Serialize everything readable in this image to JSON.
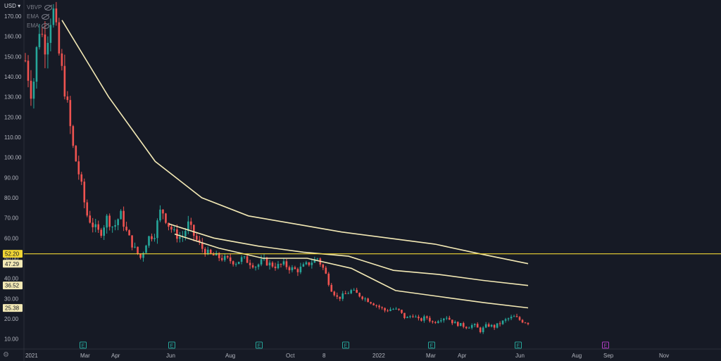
{
  "header": {
    "currency_label": "USD ▾"
  },
  "legend": [
    {
      "label": "VBVP",
      "icon": "eye-off-icon"
    },
    {
      "label": "EMA",
      "icon": "eye-off-icon"
    },
    {
      "label": "EMA",
      "icon": "eye-off-icon"
    }
  ],
  "colors": {
    "background": "#161a25",
    "up": "#26a69a",
    "down": "#ef5350",
    "ema": "#f3e9b5",
    "level_line": "#f0d534",
    "earnings": "#26a69a",
    "earnings_future": "#b03ec4"
  },
  "chart_data": {
    "type": "candlestick",
    "y_axis": {
      "ticks": [
        "170.00",
        "160.00",
        "150.00",
        "140.00",
        "130.00",
        "120.00",
        "110.00",
        "100.00",
        "90.00",
        "80.00",
        "70.00",
        "60.00",
        "50.00",
        "40.00",
        "30.00",
        "20.00",
        "10.00"
      ],
      "range": [
        5,
        178
      ]
    },
    "x_axis": {
      "ticks": [
        "2021",
        "Mar",
        "Apr",
        "Jun",
        "Aug",
        "Oct",
        "8",
        "2022",
        "Mar",
        "Apr",
        "Jun",
        "Aug",
        "Sep",
        "Nov"
      ]
    },
    "price_labels": [
      {
        "value": "52.20",
        "style": "level"
      },
      {
        "value": "47.29",
        "style": "ema"
      },
      {
        "value": "36.52",
        "style": "ema"
      },
      {
        "value": "25.38",
        "style": "ema"
      }
    ],
    "horizontal_level": 52.2,
    "ema_series": [
      {
        "values": [
          168,
          130,
          98,
          80,
          71,
          67,
          63,
          60,
          57,
          52,
          47.3
        ]
      },
      {
        "values": [
          67,
          60,
          56,
          53,
          51,
          44,
          42,
          39,
          36.5
        ]
      },
      {
        "values": [
          62,
          55,
          50,
          50,
          45,
          34,
          31,
          28,
          25.4
        ]
      }
    ],
    "price_path": [
      148,
      130,
      165,
      155,
      175,
      150,
      130,
      105,
      90,
      72,
      66,
      62,
      70,
      65,
      72,
      62,
      55,
      50,
      60,
      62,
      75,
      67,
      62,
      60,
      67,
      60,
      55,
      52,
      51,
      50,
      49,
      48,
      50,
      48,
      46,
      49,
      47,
      46,
      47,
      45,
      44,
      46,
      48,
      50,
      44,
      35,
      30,
      32,
      34,
      32,
      30,
      28,
      26,
      24,
      25,
      24,
      20,
      22,
      19,
      21,
      18,
      20,
      21,
      18,
      17,
      16,
      17,
      14,
      17,
      16,
      18,
      20,
      21,
      19,
      18
    ],
    "earnings_markers": [
      {
        "label": "E",
        "future": false
      },
      {
        "label": "E",
        "future": false
      },
      {
        "label": "E",
        "future": false
      },
      {
        "label": "E",
        "future": false
      },
      {
        "label": "E",
        "future": false
      },
      {
        "label": "E",
        "future": false
      },
      {
        "label": "E",
        "future": true
      }
    ]
  }
}
